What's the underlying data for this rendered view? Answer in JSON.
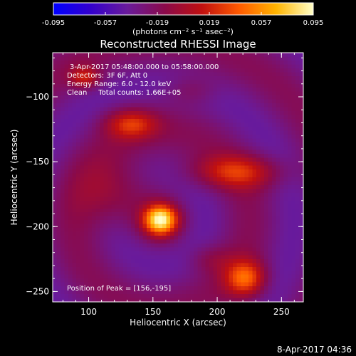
{
  "colorbar": {
    "tick_labels": [
      "-0.095",
      "-0.057",
      "-0.019",
      "0.019",
      "0.057",
      "0.095"
    ],
    "ticks": [
      -0.095,
      -0.057,
      -0.019,
      0.019,
      0.057,
      0.095
    ],
    "range": [
      -0.095,
      0.095
    ],
    "unit_label": "(photons cm⁻² s⁻¹ asec⁻²)",
    "stops": [
      "#0000ff",
      "#3300cc",
      "#6a1b9a",
      "#8a0a4a",
      "#c01010",
      "#ff5a00",
      "#ffb400",
      "#ffffc8"
    ]
  },
  "plot": {
    "title": "Reconstructed RHESSI Image",
    "info_lines": [
      "3-Apr-2017 05:48:00.000 to 05:58:00.000",
      "Detectors: 3F 6F, Att 0",
      "Energy Range: 6.0 - 12.0 keV",
      "Clean     Total counts: 1.66E+05"
    ],
    "peak_label": "Position of Peak = [156,-195]",
    "footer_timestamp": "8-Apr-2017 04:36"
  },
  "chart_data": {
    "type": "heatmap",
    "title": "Reconstructed RHESSI Image",
    "xlabel": "Heliocentric X (arcsec)",
    "ylabel": "Heliocentric Y (arcsec)",
    "xlim": [
      72,
      267
    ],
    "ylim": [
      -258,
      -66
    ],
    "xticks": [
      100,
      150,
      200,
      250
    ],
    "yticks": [
      -100,
      -150,
      -200,
      -250
    ],
    "xtick_labels": [
      "100",
      "150",
      "200",
      "250"
    ],
    "ytick_labels": [
      "−100",
      "−150",
      "−200",
      "−250"
    ],
    "peak": {
      "x": 156,
      "y": -195
    },
    "sources": [
      {
        "x": 156,
        "y": -195,
        "sx": 9,
        "sy": 8,
        "amp": 0.115
      },
      {
        "x": 133,
        "y": -121,
        "sx": 14,
        "sy": 8,
        "amp": 0.052
      },
      {
        "x": 97,
        "y": -85,
        "sx": 8,
        "sy": 6,
        "amp": 0.045
      },
      {
        "x": 215,
        "y": -158,
        "sx": 24,
        "sy": 9,
        "amp": 0.05
      },
      {
        "x": 120,
        "y": -175,
        "sx": 20,
        "sy": 18,
        "amp": 0.03
      },
      {
        "x": 222,
        "y": -240,
        "sx": 11,
        "sy": 10,
        "amp": 0.07
      },
      {
        "x": 195,
        "y": -225,
        "sx": 12,
        "sy": 8,
        "amp": 0.02
      },
      {
        "x": 180,
        "y": -95,
        "sx": 14,
        "sy": 8,
        "amp": 0.018
      }
    ]
  }
}
